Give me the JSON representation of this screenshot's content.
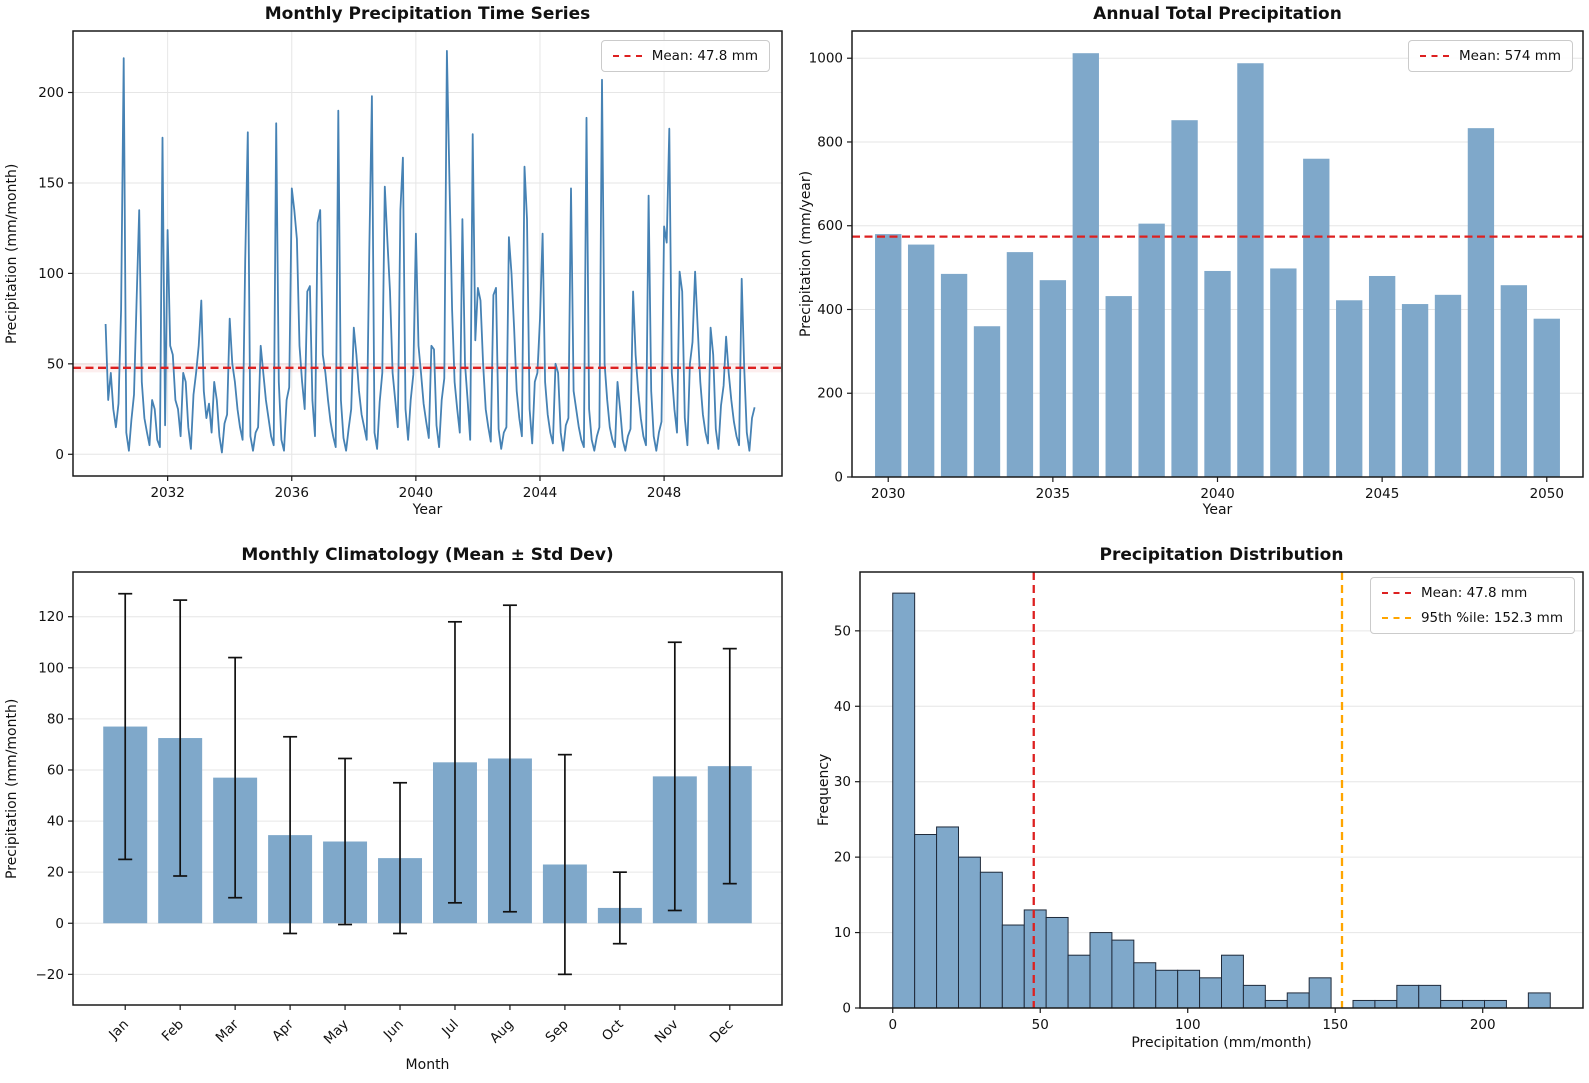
{
  "colors": {
    "line_blue": "#4682b4",
    "bar_blue": "#7fa8ca",
    "hist_edge": "#202b3b",
    "mean_red": "#dd2020",
    "pctl_orange": "#ffa500",
    "grid_gray": "#e6e6e6",
    "spine_dark": "#1a1a1a",
    "errorbar_black": "#111111",
    "text_dark": "#111111"
  },
  "chart_data": [
    {
      "type": "line",
      "title": "Monthly Precipitation Time Series",
      "xlabel": "Year",
      "ylabel": "Precipitation (mm/month)",
      "legend_label": "Mean: 47.8 mm",
      "mean_value": 47.8,
      "start_year": 2030,
      "points_per_year": 12,
      "xlim": [
        2028.95,
        2051.8
      ],
      "ylim": [
        -12,
        234
      ],
      "xticks": [
        2032,
        2036,
        2040,
        2044,
        2048
      ],
      "yticks": [
        0,
        50,
        100,
        150,
        200
      ],
      "grid_x": true,
      "values_by_year": [
        [
          72,
          30,
          45,
          25,
          15,
          28,
          80,
          219,
          12,
          2,
          19,
          33
        ],
        [
          85,
          135,
          40,
          20,
          12,
          5,
          30,
          25,
          8,
          4,
          175,
          16
        ],
        [
          124,
          60,
          55,
          30,
          25,
          10,
          45,
          40,
          15,
          3,
          33,
          45
        ],
        [
          60,
          85,
          35,
          20,
          28,
          12,
          40,
          30,
          10,
          1,
          17,
          22
        ],
        [
          75,
          50,
          40,
          25,
          15,
          8,
          107,
          178,
          10,
          2,
          12,
          15
        ],
        [
          60,
          45,
          30,
          20,
          10,
          5,
          183,
          40,
          8,
          2,
          30,
          37
        ],
        [
          147,
          135,
          119,
          60,
          40,
          25,
          90,
          93,
          30,
          10,
          128,
          135
        ],
        [
          55,
          45,
          30,
          18,
          10,
          4,
          190,
          30,
          9,
          2,
          14,
          25
        ],
        [
          70,
          55,
          35,
          22,
          15,
          8,
          113,
          198,
          12,
          3,
          29,
          45
        ],
        [
          148,
          118,
          90,
          45,
          30,
          15,
          135,
          164,
          25,
          8,
          30,
          44
        ],
        [
          122,
          60,
          45,
          28,
          18,
          9,
          60,
          58,
          16,
          4,
          30,
          42
        ],
        [
          223,
          150,
          80,
          40,
          25,
          12,
          130,
          50,
          30,
          8,
          177,
          63
        ],
        [
          92,
          85,
          50,
          25,
          15,
          7,
          88,
          92,
          14,
          3,
          12,
          15
        ],
        [
          120,
          100,
          70,
          35,
          20,
          10,
          159,
          130,
          25,
          6,
          40,
          45
        ],
        [
          75,
          122,
          40,
          22,
          12,
          6,
          50,
          45,
          12,
          2,
          16,
          20
        ],
        [
          147,
          35,
          25,
          15,
          8,
          4,
          186,
          25,
          8,
          2,
          10,
          15
        ],
        [
          207,
          50,
          30,
          15,
          8,
          4,
          40,
          25,
          8,
          2,
          10,
          14
        ],
        [
          90,
          55,
          35,
          20,
          10,
          5,
          143,
          35,
          10,
          2,
          12,
          18
        ],
        [
          126,
          117,
          180,
          45,
          25,
          12,
          101,
          90,
          20,
          5,
          50,
          62
        ],
        [
          101,
          70,
          40,
          22,
          12,
          6,
          70,
          55,
          14,
          3,
          27,
          38
        ],
        [
          65,
          45,
          30,
          18,
          10,
          5,
          97,
          48,
          12,
          2,
          20,
          26
        ]
      ]
    },
    {
      "type": "bar",
      "title": "Annual Total Precipitation",
      "xlabel": "Year",
      "ylabel": "Precipitation (mm/year)",
      "legend_label": "Mean: 574 mm",
      "mean_value": 574,
      "categories": [
        2030,
        2031,
        2032,
        2033,
        2034,
        2035,
        2036,
        2037,
        2038,
        2039,
        2040,
        2041,
        2042,
        2043,
        2044,
        2045,
        2046,
        2047,
        2048,
        2049,
        2050
      ],
      "values": [
        580,
        555,
        485,
        360,
        537,
        470,
        1012,
        432,
        605,
        852,
        492,
        988,
        498,
        760,
        422,
        480,
        413,
        435,
        833,
        458,
        378
      ],
      "xlim": [
        2028.9,
        2051.1
      ],
      "ylim": [
        0,
        1065
      ],
      "xticks": [
        2030,
        2035,
        2040,
        2045,
        2050
      ],
      "yticks": [
        0,
        200,
        400,
        600,
        800,
        1000
      ],
      "grid_x": false
    },
    {
      "type": "bar",
      "variant": "mean-std-errorbars",
      "title": "Monthly Climatology (Mean ± Std Dev)",
      "xlabel": "Month",
      "ylabel": "Precipitation (mm/month)",
      "categories": [
        "Jan",
        "Feb",
        "Mar",
        "Apr",
        "May",
        "Jun",
        "Jul",
        "Aug",
        "Sep",
        "Oct",
        "Nov",
        "Dec"
      ],
      "means": [
        77,
        72.5,
        57,
        34.5,
        32,
        25.5,
        63,
        64.5,
        23,
        6,
        57.5,
        61.5
      ],
      "stds": [
        52,
        54,
        47,
        38.5,
        32.5,
        29.5,
        55,
        60,
        43,
        14,
        52.5,
        46
      ],
      "rotate_labels": true,
      "xlim": [
        -0.95,
        11.95
      ],
      "ylim": [
        -32,
        137.5
      ],
      "yticks": [
        -20,
        0,
        20,
        40,
        60,
        80,
        100,
        120
      ],
      "grid_x": false
    },
    {
      "type": "histogram",
      "title": "Precipitation Distribution",
      "xlabel": "Precipitation (mm/month)",
      "ylabel": "Frequency",
      "bin_start": 0,
      "bin_width": 7.43,
      "counts": [
        55,
        23,
        24,
        20,
        18,
        11,
        13,
        12,
        7,
        10,
        9,
        6,
        5,
        5,
        4,
        7,
        3,
        1,
        2,
        4,
        0,
        1,
        1,
        3,
        3,
        1,
        1,
        1,
        0,
        2
      ],
      "mean_line": {
        "value": 47.8,
        "label": "Mean: 47.8 mm"
      },
      "pctl_line": {
        "value": 152.3,
        "label": "95th %ile: 152.3 mm"
      },
      "xlim": [
        -11.1,
        234
      ],
      "ylim": [
        0,
        57.8
      ],
      "xticks": [
        0,
        50,
        100,
        150,
        200
      ],
      "yticks": [
        0,
        10,
        20,
        30,
        40,
        50
      ],
      "grid_x": false
    }
  ]
}
